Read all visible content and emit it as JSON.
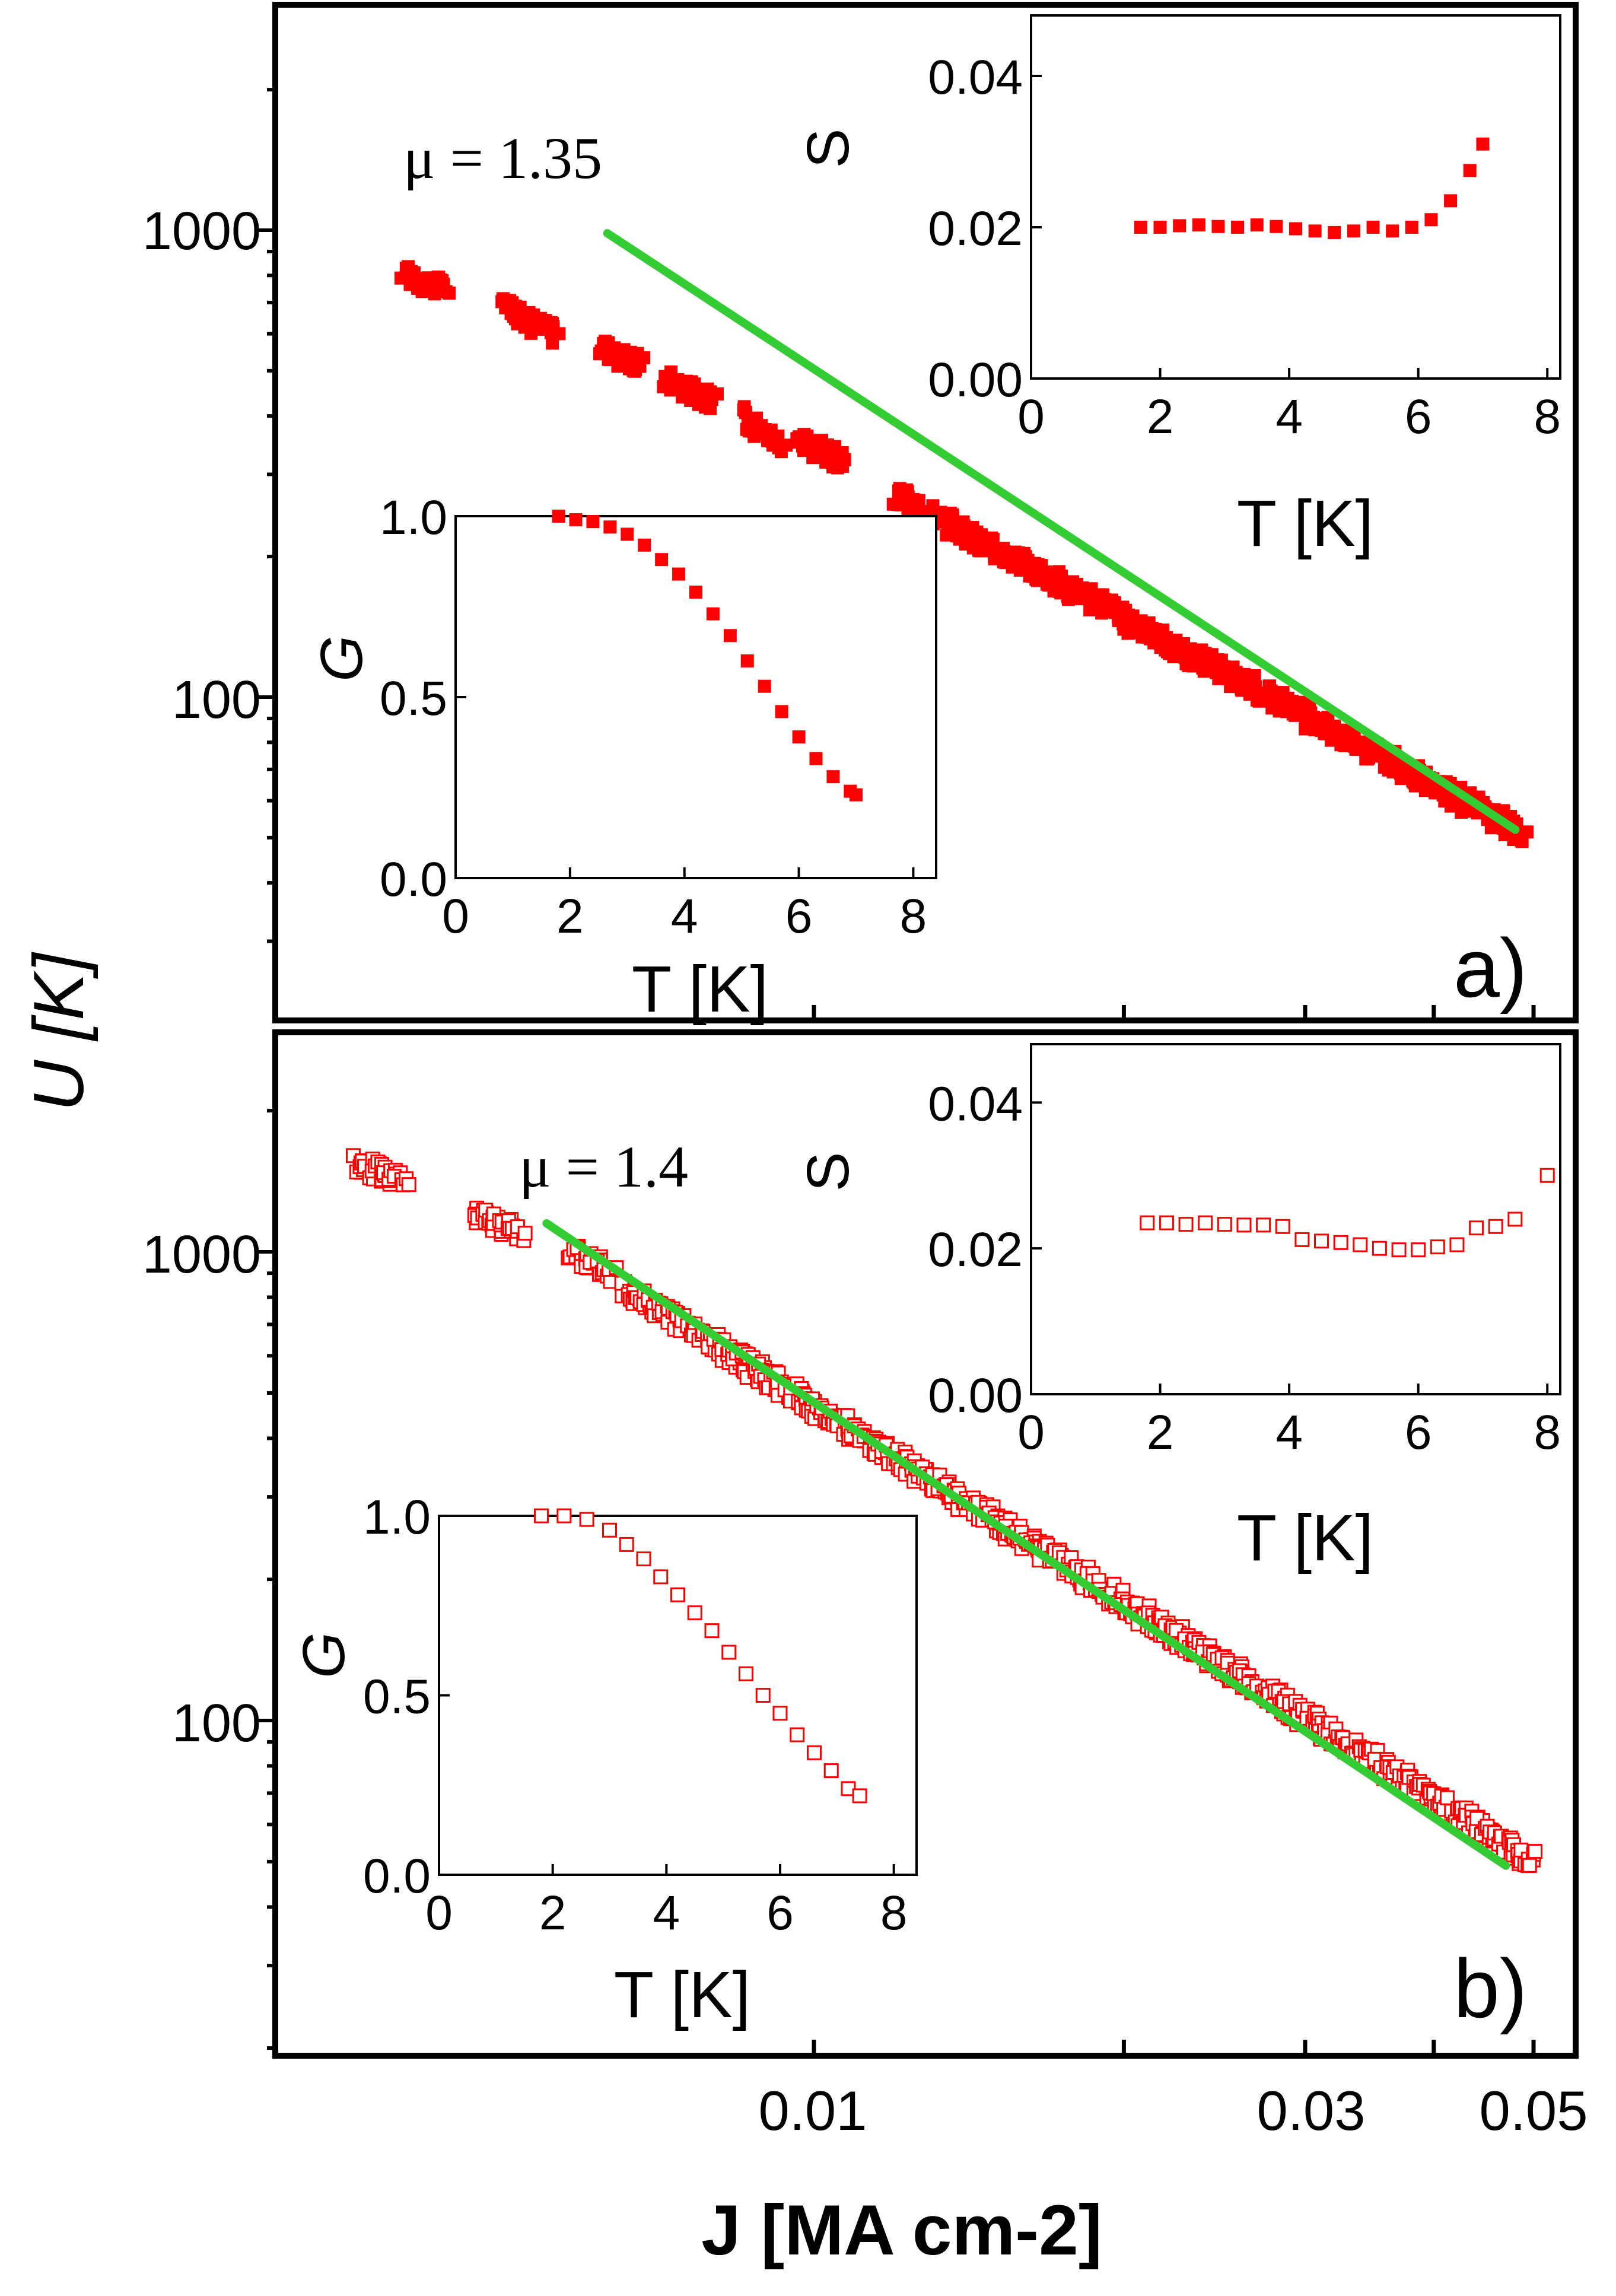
{
  "figure": {
    "y_label": "U [K]",
    "x_label": "J [MA cm-2]",
    "x_ticks": [
      "0.01",
      "0.03",
      "0.05"
    ],
    "colors": {
      "data": "#ff0000",
      "fit": "#33cc33",
      "frame": "#000000"
    }
  },
  "chart_data": [
    {
      "type": "scatter",
      "panel": "a)",
      "xscale": "log",
      "yscale": "log",
      "xlim": [
        0.0038,
        0.052
      ],
      "ylim": [
        42,
        3000
      ],
      "y_ticks": [
        "100",
        "1000"
      ],
      "marker": "filled-square",
      "series": [
        {
          "name": "U(J)",
          "clusters": [
            {
              "j": [
                0.004,
                0.0044
              ],
              "u": [
                800,
                745
              ]
            },
            {
              "j": [
                0.005,
                0.0056
              ],
              "u": [
                690,
                600
              ]
            },
            {
              "j": [
                0.0062,
                0.0068
              ],
              "u": [
                560,
                510
              ]
            },
            {
              "j": [
                0.0072,
                0.008
              ],
              "u": [
                480,
                430
              ]
            },
            {
              "j": [
                0.0085,
                0.0093
              ],
              "u": [
                400,
                350
              ]
            },
            {
              "j": [
                0.0096,
                0.0107
              ],
              "u": [
                360,
                315
              ]
            },
            {
              "j": [
                0.012,
                0.049
              ],
              "u": [
                270,
                51
              ]
            }
          ]
        }
      ],
      "fit": {
        "label": "μ = 1.35",
        "mu": 1.35,
        "x": [
          0.0063,
          0.048
        ],
        "y": [
          985,
          52
        ]
      },
      "insets": [
        {
          "type": "scatter",
          "xlabel": "T [K]",
          "ylabel": "S",
          "marker": "filled-square",
          "xlim": [
            0,
            8.2
          ],
          "ylim": [
            0,
            0.048
          ],
          "x_ticks": [
            "0",
            "2",
            "4",
            "6",
            "8"
          ],
          "y_ticks": [
            "0.00",
            "0.02",
            "0.04"
          ],
          "x": [
            1.7,
            2.0,
            2.3,
            2.6,
            2.9,
            3.2,
            3.5,
            3.8,
            4.1,
            4.4,
            4.7,
            5.0,
            5.3,
            5.6,
            5.9,
            6.2,
            6.5,
            6.8,
            7.0
          ],
          "y": [
            0.02,
            0.02,
            0.0202,
            0.0203,
            0.0201,
            0.02,
            0.0203,
            0.0201,
            0.0198,
            0.0195,
            0.0193,
            0.0195,
            0.02,
            0.0195,
            0.02,
            0.021,
            0.0235,
            0.0275,
            0.031
          ]
        },
        {
          "type": "scatter",
          "xlabel": "T [K]",
          "ylabel": "G",
          "marker": "filled-square",
          "xlim": [
            0,
            8.4
          ],
          "ylim": [
            0,
            1.0
          ],
          "x_ticks": [
            "0",
            "2",
            "4",
            "6",
            "8"
          ],
          "y_ticks": [
            "0.0",
            "0.5",
            "1.0"
          ],
          "x": [
            1.8,
            2.1,
            2.4,
            2.7,
            3.0,
            3.3,
            3.6,
            3.9,
            4.2,
            4.5,
            4.8,
            5.1,
            5.4,
            5.7,
            6.0,
            6.3,
            6.6,
            6.9,
            7.0
          ],
          "y": [
            1.0,
            0.99,
            0.985,
            0.97,
            0.95,
            0.92,
            0.88,
            0.84,
            0.79,
            0.73,
            0.67,
            0.6,
            0.53,
            0.46,
            0.39,
            0.33,
            0.28,
            0.24,
            0.23
          ]
        }
      ]
    },
    {
      "type": "scatter",
      "panel": "b)",
      "xscale": "log",
      "yscale": "log",
      "xlim": [
        0.0038,
        0.052
      ],
      "ylim": [
        42,
        3000
      ],
      "y_ticks": [
        "100",
        "1000"
      ],
      "marker": "open-square",
      "series": [
        {
          "name": "U(J)",
          "clusters": [
            {
              "j": [
                0.0036,
                0.004
              ],
              "u": [
                1550,
                1420
              ]
            },
            {
              "j": [
                0.0047,
                0.0052
              ],
              "u": [
                1200,
                1100
              ]
            },
            {
              "j": [
                0.0058,
                0.0064
              ],
              "u": [
                1000,
                900
              ]
            },
            {
              "j": [
                0.0065,
                0.05
              ],
              "u": [
                850,
                50
              ]
            }
          ]
        }
      ],
      "fit": {
        "label": "μ = 1.4",
        "mu": 1.4,
        "x": [
          0.0055,
          0.047
        ],
        "y": [
          1150,
          49
        ]
      },
      "insets": [
        {
          "type": "scatter",
          "xlabel": "T [K]",
          "ylabel": "S",
          "marker": "open-square",
          "xlim": [
            0,
            8.2
          ],
          "ylim": [
            0,
            0.048
          ],
          "x_ticks": [
            "0",
            "2",
            "4",
            "6",
            "8"
          ],
          "y_ticks": [
            "0.00",
            "0.02",
            "0.04"
          ],
          "x": [
            1.8,
            2.1,
            2.4,
            2.7,
            3.0,
            3.3,
            3.6,
            3.9,
            4.2,
            4.5,
            4.8,
            5.1,
            5.4,
            5.7,
            6.0,
            6.3,
            6.6,
            6.9,
            7.2,
            7.5,
            8.0
          ],
          "y": [
            0.0235,
            0.0235,
            0.0233,
            0.0235,
            0.0233,
            0.0232,
            0.0232,
            0.023,
            0.0212,
            0.021,
            0.0208,
            0.0205,
            0.02,
            0.0198,
            0.0198,
            0.0202,
            0.0205,
            0.0228,
            0.023,
            0.024,
            0.03
          ]
        },
        {
          "type": "scatter",
          "xlabel": "T [K]",
          "ylabel": "G",
          "marker": "open-square",
          "xlim": [
            0,
            8.4
          ],
          "ylim": [
            0,
            1.0
          ],
          "x_ticks": [
            "0",
            "2",
            "4",
            "6",
            "8"
          ],
          "y_ticks": [
            "0.0",
            "0.5",
            "1.0"
          ],
          "x": [
            1.8,
            2.2,
            2.6,
            3.0,
            3.3,
            3.6,
            3.9,
            4.2,
            4.5,
            4.8,
            5.1,
            5.4,
            5.7,
            6.0,
            6.3,
            6.6,
            6.9,
            7.2,
            7.4
          ],
          "y": [
            1.0,
            1.0,
            0.99,
            0.96,
            0.92,
            0.88,
            0.83,
            0.78,
            0.73,
            0.68,
            0.62,
            0.56,
            0.5,
            0.45,
            0.39,
            0.34,
            0.29,
            0.24,
            0.22
          ]
        }
      ]
    }
  ]
}
